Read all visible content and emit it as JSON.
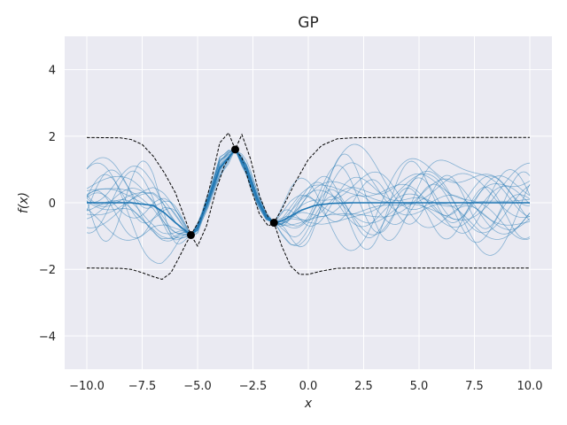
{
  "chart_data": {
    "type": "line",
    "title": "GP",
    "xlabel": "x",
    "ylabel": "f(x)",
    "xlim": [
      -11.0,
      11.0
    ],
    "ylim": [
      -5.0,
      5.0
    ],
    "xticks": [
      -10.0,
      -7.5,
      -5.0,
      -2.5,
      0.0,
      2.5,
      5.0,
      7.5,
      10.0
    ],
    "xtick_labels": [
      "−10.0",
      "−7.5",
      "−5.0",
      "−2.5",
      "0.0",
      "2.5",
      "5.0",
      "7.5",
      "10.0"
    ],
    "yticks": [
      -4,
      -2,
      0,
      2,
      4
    ],
    "ytick_labels": [
      "−4",
      "−2",
      "0",
      "2",
      "4"
    ],
    "grid": true,
    "background": "#eaeaf2",
    "mean_color": "#1f77b4",
    "sample_color": "#1f77b4",
    "bound_color": "#000000",
    "observations": [
      {
        "x": -5.3,
        "y": -0.97
      },
      {
        "x": -3.3,
        "y": 1.6
      },
      {
        "x": -1.55,
        "y": -0.6
      }
    ],
    "mean": {
      "x": [
        -10.0,
        -8.0,
        -7.0,
        -6.5,
        -6.0,
        -5.3,
        -5.0,
        -4.5,
        -4.0,
        -3.3,
        -2.8,
        -2.3,
        -1.9,
        -1.55,
        -1.2,
        -0.8,
        -0.3,
        0.3,
        1.0,
        2.0,
        3.0,
        5.0,
        7.5,
        10.0
      ],
      "y": [
        0.0,
        0.0,
        -0.08,
        -0.3,
        -0.6,
        -0.97,
        -0.75,
        0.1,
        1.05,
        1.6,
        1.0,
        0.1,
        -0.42,
        -0.6,
        -0.55,
        -0.4,
        -0.22,
        -0.08,
        -0.02,
        0.0,
        0.0,
        0.0,
        0.0,
        0.0
      ]
    },
    "upper_bound": {
      "x": [
        -10.0,
        -8.5,
        -8.0,
        -7.5,
        -7.0,
        -6.5,
        -6.0,
        -5.5,
        -5.3,
        -4.8,
        -4.4,
        -4.0,
        -3.6,
        -3.3,
        -3.0,
        -2.6,
        -2.2,
        -1.8,
        -1.55,
        -1.2,
        -0.6,
        0.0,
        0.6,
        1.3,
        2.0,
        3.0,
        5.0,
        7.5,
        10.0
      ],
      "y": [
        1.96,
        1.95,
        1.9,
        1.75,
        1.4,
        0.9,
        0.3,
        -0.6,
        -0.97,
        -0.4,
        0.6,
        1.8,
        2.1,
        1.6,
        2.05,
        1.3,
        0.2,
        -0.45,
        -0.6,
        -0.2,
        0.6,
        1.3,
        1.72,
        1.92,
        1.95,
        1.96,
        1.96,
        1.96,
        1.96
      ]
    },
    "lower_bound": {
      "x": [
        -10.0,
        -8.5,
        -8.0,
        -7.5,
        -7.0,
        -6.6,
        -6.2,
        -5.8,
        -5.5,
        -5.3,
        -5.0,
        -4.6,
        -4.2,
        -3.8,
        -3.5,
        -3.3,
        -3.0,
        -2.6,
        -2.2,
        -1.8,
        -1.55,
        -1.2,
        -0.8,
        -0.4,
        0.0,
        0.6,
        1.3,
        2.0,
        3.0,
        5.0,
        7.5,
        10.0
      ],
      "y": [
        -1.96,
        -1.97,
        -2.0,
        -2.1,
        -2.22,
        -2.3,
        -2.1,
        -1.6,
        -1.2,
        -0.97,
        -1.3,
        -0.7,
        0.3,
        1.1,
        1.45,
        1.6,
        1.35,
        0.45,
        -0.35,
        -0.7,
        -0.6,
        -1.3,
        -1.9,
        -2.15,
        -2.15,
        -2.05,
        -1.97,
        -1.96,
        -1.96,
        -1.96,
        -1.96,
        -1.96
      ]
    },
    "n_samples": 20
  }
}
